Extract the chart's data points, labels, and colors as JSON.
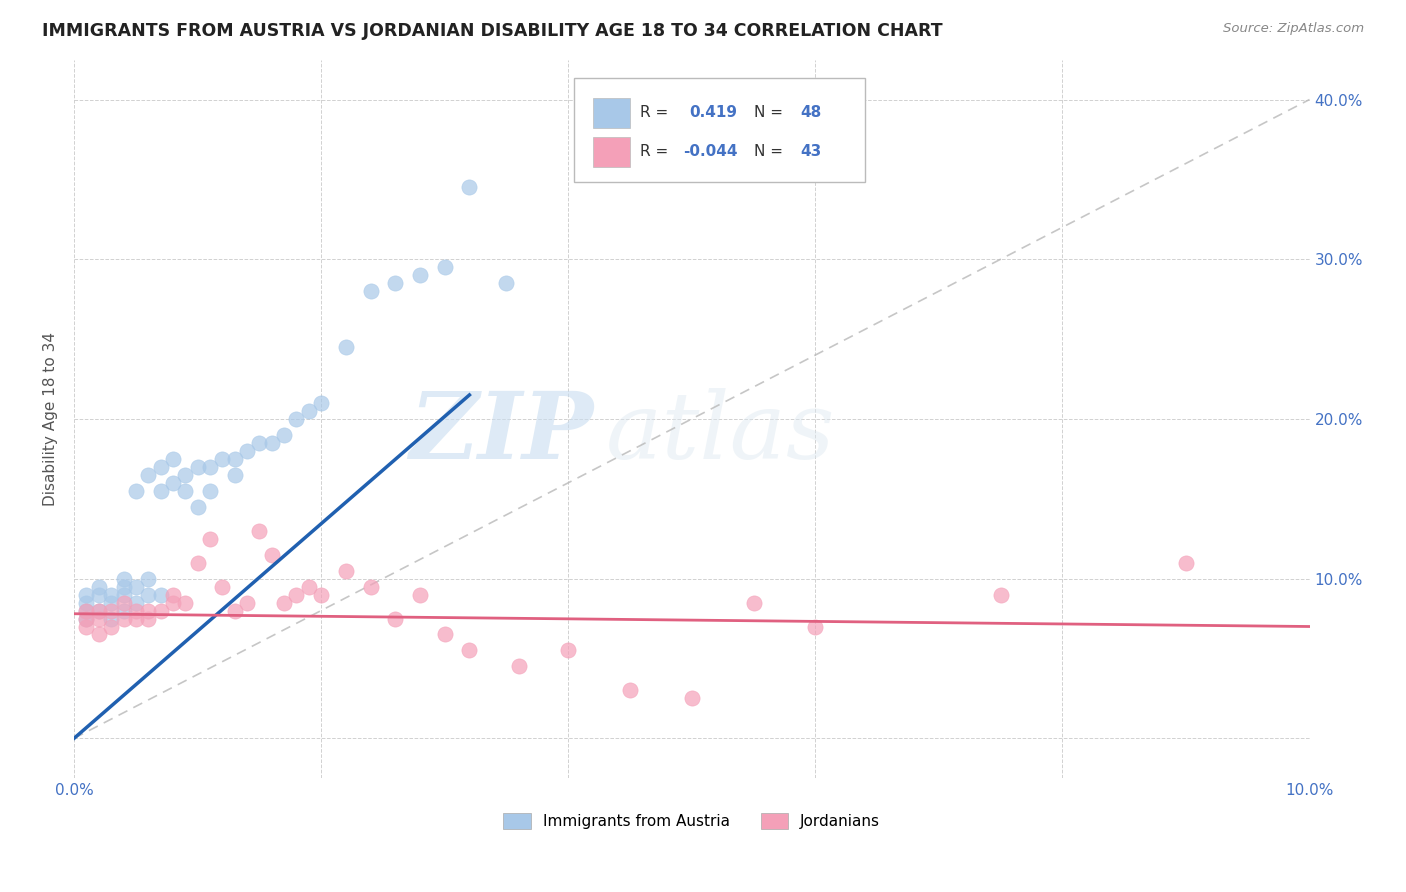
{
  "title": "IMMIGRANTS FROM AUSTRIA VS JORDANIAN DISABILITY AGE 18 TO 34 CORRELATION CHART",
  "source": "Source: ZipAtlas.com",
  "ylabel": "Disability Age 18 to 34",
  "xlim": [
    0.0,
    0.1
  ],
  "ylim": [
    -0.025,
    0.425
  ],
  "austria_R": 0.419,
  "austria_N": 48,
  "jordan_R": -0.044,
  "jordan_N": 43,
  "austria_color": "#a8c8e8",
  "jordan_color": "#f4a0b8",
  "austria_line_color": "#2060b0",
  "jordan_line_color": "#e06080",
  "diagonal_color": "#b8b8b8",
  "austria_scatter_x": [
    0.001,
    0.001,
    0.001,
    0.001,
    0.002,
    0.002,
    0.002,
    0.003,
    0.003,
    0.003,
    0.004,
    0.004,
    0.004,
    0.004,
    0.005,
    0.005,
    0.005,
    0.006,
    0.006,
    0.006,
    0.007,
    0.007,
    0.007,
    0.008,
    0.008,
    0.009,
    0.009,
    0.01,
    0.01,
    0.011,
    0.011,
    0.012,
    0.013,
    0.013,
    0.014,
    0.015,
    0.016,
    0.017,
    0.018,
    0.019,
    0.02,
    0.022,
    0.024,
    0.026,
    0.028,
    0.03,
    0.032,
    0.035
  ],
  "austria_scatter_y": [
    0.075,
    0.08,
    0.085,
    0.09,
    0.08,
    0.09,
    0.095,
    0.075,
    0.085,
    0.09,
    0.08,
    0.09,
    0.095,
    0.1,
    0.085,
    0.095,
    0.155,
    0.09,
    0.1,
    0.165,
    0.09,
    0.155,
    0.17,
    0.16,
    0.175,
    0.155,
    0.165,
    0.145,
    0.17,
    0.155,
    0.17,
    0.175,
    0.165,
    0.175,
    0.18,
    0.185,
    0.185,
    0.19,
    0.2,
    0.205,
    0.21,
    0.245,
    0.28,
    0.285,
    0.29,
    0.295,
    0.345,
    0.285
  ],
  "jordan_scatter_x": [
    0.001,
    0.001,
    0.001,
    0.002,
    0.002,
    0.002,
    0.003,
    0.003,
    0.004,
    0.004,
    0.005,
    0.005,
    0.006,
    0.006,
    0.007,
    0.008,
    0.008,
    0.009,
    0.01,
    0.011,
    0.012,
    0.013,
    0.014,
    0.015,
    0.016,
    0.017,
    0.018,
    0.019,
    0.02,
    0.022,
    0.024,
    0.026,
    0.028,
    0.03,
    0.032,
    0.036,
    0.04,
    0.045,
    0.05,
    0.055,
    0.06,
    0.075,
    0.09
  ],
  "jordan_scatter_y": [
    0.07,
    0.075,
    0.08,
    0.065,
    0.075,
    0.08,
    0.07,
    0.08,
    0.075,
    0.085,
    0.075,
    0.08,
    0.075,
    0.08,
    0.08,
    0.085,
    0.09,
    0.085,
    0.11,
    0.125,
    0.095,
    0.08,
    0.085,
    0.13,
    0.115,
    0.085,
    0.09,
    0.095,
    0.09,
    0.105,
    0.095,
    0.075,
    0.09,
    0.065,
    0.055,
    0.045,
    0.055,
    0.03,
    0.025,
    0.085,
    0.07,
    0.09,
    0.11
  ],
  "austria_line_x0": 0.0,
  "austria_line_y0": 0.0,
  "austria_line_x1": 0.032,
  "austria_line_y1": 0.215,
  "jordan_line_x0": 0.0,
  "jordan_line_y0": 0.078,
  "jordan_line_x1": 0.1,
  "jordan_line_y1": 0.07,
  "watermark_zip": "ZIP",
  "watermark_atlas": "atlas",
  "legend_items": [
    "Immigrants from Austria",
    "Jordanians"
  ]
}
